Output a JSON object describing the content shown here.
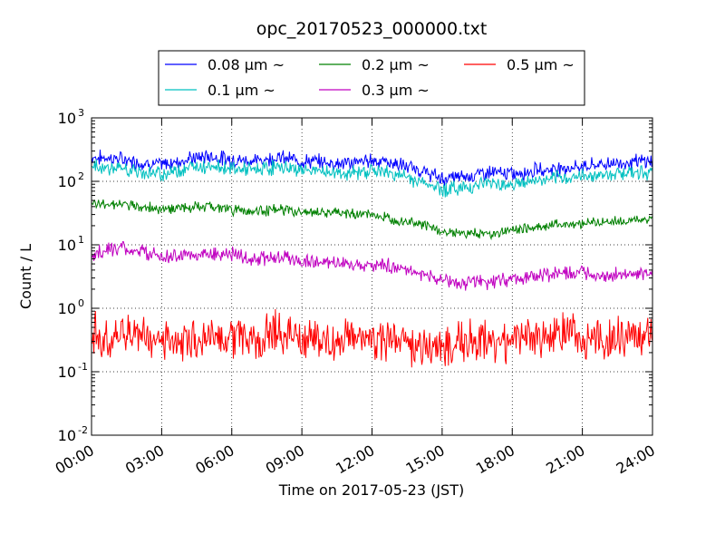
{
  "chart_data": {
    "type": "line",
    "title": "opc_20170523_000000.txt",
    "xlabel": "Time on 2017-05-23 (JST)",
    "ylabel": "Count / L",
    "x_ticks": [
      "00:00",
      "03:00",
      "06:00",
      "09:00",
      "12:00",
      "15:00",
      "18:00",
      "21:00",
      "24:00"
    ],
    "xlim": [
      "00:00",
      "24:00"
    ],
    "yscale": "log",
    "ylim": [
      0.01,
      1000
    ],
    "y_ticks": [
      {
        "base": "10",
        "exp": "-2",
        "value": 0.01
      },
      {
        "base": "10",
        "exp": "-1",
        "value": 0.1
      },
      {
        "base": "10",
        "exp": "0",
        "value": 1
      },
      {
        "base": "10",
        "exp": "1",
        "value": 10
      },
      {
        "base": "10",
        "exp": "2",
        "value": 100
      },
      {
        "base": "10",
        "exp": "3",
        "value": 1000
      }
    ],
    "grid": true,
    "legend_position": "above-plot",
    "series": [
      {
        "name": "0.08 μm ~",
        "color": "#0000ff",
        "x": [
          "00:00",
          "01:00",
          "02:00",
          "03:00",
          "04:00",
          "05:00",
          "06:00",
          "07:00",
          "08:00",
          "09:00",
          "10:00",
          "11:00",
          "12:00",
          "13:00",
          "14:00",
          "15:00",
          "16:00",
          "17:00",
          "18:00",
          "19:00",
          "20:00",
          "21:00",
          "22:00",
          "23:00",
          "24:00"
        ],
        "values": [
          240,
          230,
          200,
          180,
          220,
          250,
          220,
          210,
          240,
          210,
          200,
          190,
          220,
          190,
          150,
          110,
          120,
          140,
          130,
          150,
          160,
          170,
          190,
          200,
          210
        ]
      },
      {
        "name": "0.1 μm ~",
        "color": "#00c0c0",
        "x": [
          "00:00",
          "01:00",
          "02:00",
          "03:00",
          "04:00",
          "05:00",
          "06:00",
          "07:00",
          "08:00",
          "09:00",
          "10:00",
          "11:00",
          "12:00",
          "13:00",
          "14:00",
          "15:00",
          "16:00",
          "17:00",
          "18:00",
          "19:00",
          "20:00",
          "21:00",
          "22:00",
          "23:00",
          "24:00"
        ],
        "values": [
          170,
          160,
          140,
          130,
          160,
          180,
          160,
          150,
          170,
          150,
          140,
          130,
          150,
          130,
          100,
          75,
          80,
          95,
          90,
          100,
          110,
          120,
          130,
          140,
          140
        ]
      },
      {
        "name": "0.2 μm ~",
        "color": "#008000",
        "x": [
          "00:00",
          "01:00",
          "02:00",
          "03:00",
          "04:00",
          "05:00",
          "06:00",
          "07:00",
          "08:00",
          "09:00",
          "10:00",
          "11:00",
          "12:00",
          "13:00",
          "14:00",
          "15:00",
          "16:00",
          "17:00",
          "18:00",
          "19:00",
          "20:00",
          "21:00",
          "22:00",
          "23:00",
          "24:00"
        ],
        "values": [
          42,
          45,
          40,
          37,
          38,
          40,
          36,
          34,
          36,
          33,
          32,
          31,
          30,
          25,
          22,
          16,
          15,
          15,
          17,
          19,
          21,
          22,
          23,
          24,
          25
        ]
      },
      {
        "name": "0.3 μm ~",
        "color": "#c000c0",
        "x": [
          "00:00",
          "01:00",
          "02:00",
          "03:00",
          "04:00",
          "05:00",
          "06:00",
          "07:00",
          "08:00",
          "09:00",
          "10:00",
          "11:00",
          "12:00",
          "13:00",
          "14:00",
          "15:00",
          "16:00",
          "17:00",
          "18:00",
          "19:00",
          "20:00",
          "21:00",
          "22:00",
          "23:00",
          "24:00"
        ],
        "values": [
          7,
          9,
          8,
          6.5,
          6.5,
          7.5,
          7,
          6,
          6.5,
          5.5,
          5.2,
          5,
          5,
          4.5,
          3.6,
          2.8,
          2.5,
          2.6,
          2.9,
          3.3,
          3.6,
          3.5,
          3.4,
          3.3,
          3.4
        ]
      },
      {
        "name": "0.5 μm ~",
        "color": "#ff0000",
        "x": [
          "00:00",
          "01:00",
          "02:00",
          "03:00",
          "04:00",
          "05:00",
          "06:00",
          "07:00",
          "08:00",
          "09:00",
          "10:00",
          "11:00",
          "12:00",
          "13:00",
          "14:00",
          "15:00",
          "16:00",
          "17:00",
          "18:00",
          "19:00",
          "20:00",
          "21:00",
          "22:00",
          "23:00",
          "24:00"
        ],
        "values": [
          0.4,
          0.35,
          0.4,
          0.3,
          0.32,
          0.35,
          0.38,
          0.3,
          0.45,
          0.32,
          0.28,
          0.3,
          0.32,
          0.3,
          0.25,
          0.25,
          0.3,
          0.28,
          0.3,
          0.35,
          0.4,
          0.35,
          0.3,
          0.35,
          0.35
        ]
      }
    ]
  }
}
